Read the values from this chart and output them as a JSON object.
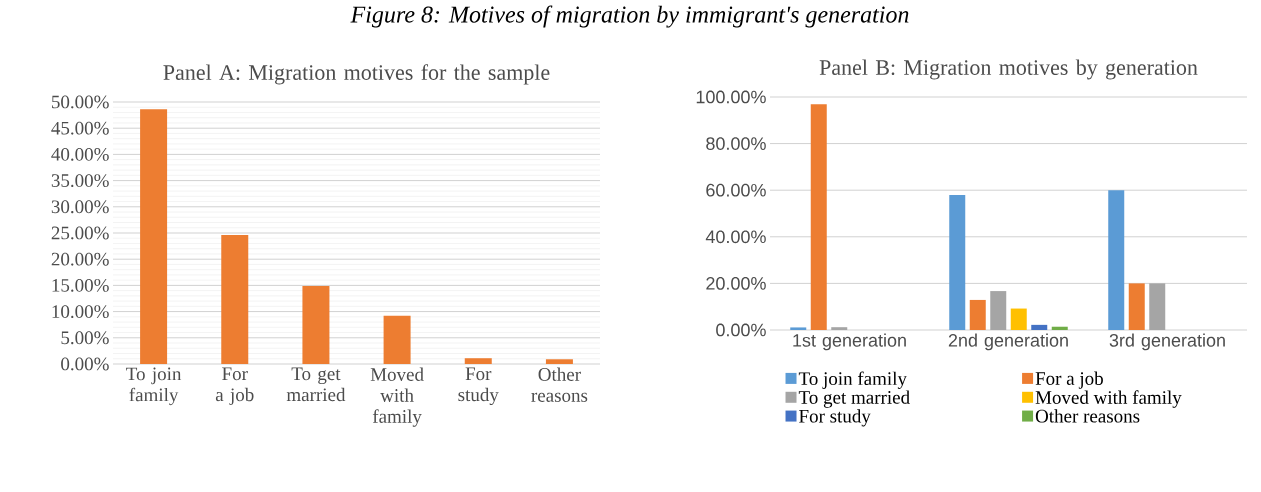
{
  "chart_data": [
    {
      "type": "bar",
      "title": "Panel A:  Migration motives for the sample",
      "annotations": [
        "Figure 8: Motives of migration by immigrant's generation"
      ],
      "categories": [
        "To join family",
        "For a job",
        "To get married",
        "Moved with family",
        "For study",
        "Other reasons"
      ],
      "values": [
        48.6,
        24.6,
        14.9,
        9.2,
        1.1,
        0.9
      ],
      "color": "#ed7d31",
      "ylim": [
        0,
        50
      ],
      "yticks": [
        {
          "value": 0,
          "label": "0.00%"
        },
        {
          "value": 5,
          "label": "5.00%"
        },
        {
          "value": 10,
          "label": "10.00%"
        },
        {
          "value": 15,
          "label": "15.00%"
        },
        {
          "value": 20,
          "label": "20.00%"
        },
        {
          "value": 25,
          "label": "25.00%"
        },
        {
          "value": 30,
          "label": "30.00%"
        },
        {
          "value": 35,
          "label": "35.00%"
        },
        {
          "value": 40,
          "label": "40.00%"
        },
        {
          "value": 45,
          "label": "45.00%"
        },
        {
          "value": 50,
          "label": "50.00%"
        }
      ],
      "grid": "y"
    },
    {
      "type": "bar",
      "title": "Panel B: Migration motives by generation",
      "categories": [
        "1st generation",
        "2nd generation",
        "3rd generation"
      ],
      "series": [
        {
          "name": "To join family",
          "color": "#5b9bd5",
          "values": [
            1.1,
            57.9,
            60
          ]
        },
        {
          "name": "For a job",
          "color": "#ed7d31",
          "values": [
            96.9,
            12.9,
            20
          ]
        },
        {
          "name": "To get married",
          "color": "#a5a5a5",
          "values": [
            1.2,
            16.7,
            20
          ]
        },
        {
          "name": "Moved with family",
          "color": "#ffc000",
          "values": [
            0,
            9.2,
            0
          ]
        },
        {
          "name": "For study",
          "color": "#4472c4",
          "values": [
            0,
            2.2,
            0
          ]
        },
        {
          "name": "Other reasons",
          "color": "#70ad47",
          "values": [
            0,
            1.4,
            0
          ]
        }
      ],
      "ylim": [
        0,
        100
      ],
      "yticks": [
        {
          "value": 0,
          "label": "0.00%"
        },
        {
          "value": 20,
          "label": "20.00%"
        },
        {
          "value": 40,
          "label": "40.00%"
        },
        {
          "value": 60,
          "label": "60.00%"
        },
        {
          "value": 80,
          "label": "80.00%"
        },
        {
          "value": 100,
          "label": "100.00%"
        }
      ],
      "grid": "y",
      "legend": "bottom"
    }
  ]
}
